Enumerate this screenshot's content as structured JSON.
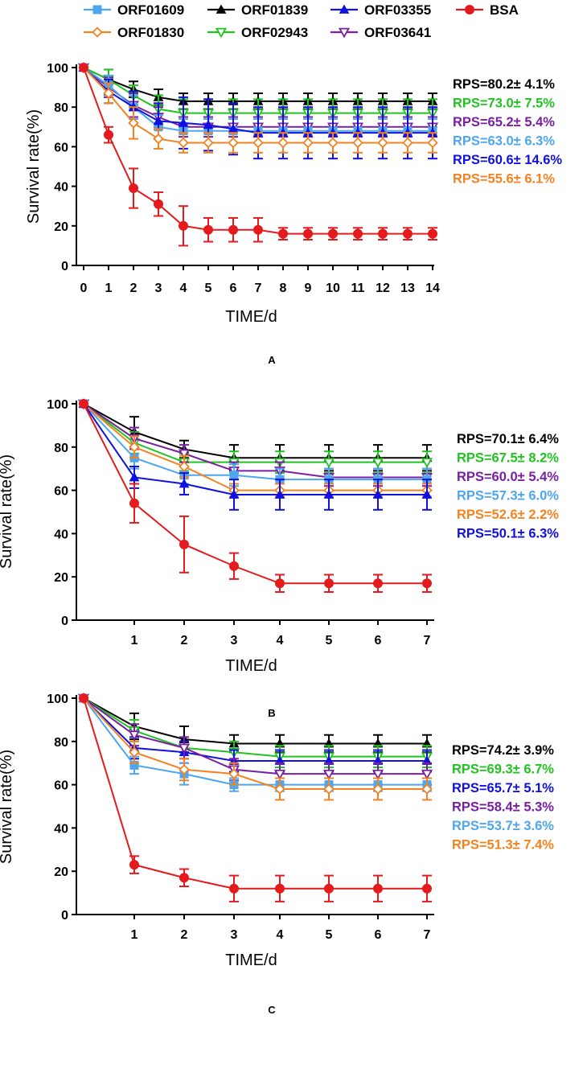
{
  "legend": [
    {
      "name": "ORF01609",
      "color": "#4da6ee",
      "marker": "square"
    },
    {
      "name": "ORF01839",
      "color": "#000000",
      "marker": "triangle-up"
    },
    {
      "name": "ORF03355",
      "color": "#1010e0",
      "marker": "triangle-up"
    },
    {
      "name": "BSA",
      "color": "#e41a1c",
      "marker": "circle"
    },
    {
      "name": "ORF01830",
      "color": "#f58220",
      "marker": "diamond-open"
    },
    {
      "name": "ORF02943",
      "color": "#21c321",
      "marker": "triangle-down-open"
    },
    {
      "name": "ORF03641",
      "color": "#7a1fa2",
      "marker": "triangle-down-open"
    }
  ],
  "chart_data": [
    {
      "type": "line",
      "panel_label": "A",
      "xlabel": "TIME/d",
      "ylabel": "Survival rate(%)",
      "xlim": [
        0,
        14
      ],
      "ylim": [
        0,
        100
      ],
      "x_ticks": [
        0,
        1,
        2,
        3,
        4,
        5,
        6,
        7,
        8,
        9,
        10,
        11,
        12,
        13,
        14
      ],
      "y_ticks": [
        0,
        20,
        40,
        60,
        80,
        100
      ],
      "x": [
        0,
        1,
        2,
        3,
        4,
        5,
        6,
        7,
        8,
        9,
        10,
        11,
        12,
        13,
        14
      ],
      "series": [
        {
          "name": "ORF01839",
          "values": [
            100,
            94,
            89,
            85,
            83,
            83,
            83,
            83,
            83,
            83,
            83,
            83,
            83,
            83,
            83
          ],
          "errors": [
            0,
            5,
            4,
            4,
            4,
            4,
            4,
            4,
            4,
            4,
            4,
            4,
            4,
            4,
            4
          ]
        },
        {
          "name": "ORF02943",
          "values": [
            100,
            94,
            86,
            79,
            77,
            77,
            77,
            77,
            77,
            77,
            77,
            77,
            77,
            77,
            77
          ],
          "errors": [
            0,
            5,
            5,
            7,
            7,
            7,
            7,
            7,
            7,
            7,
            7,
            7,
            7,
            7,
            7
          ]
        },
        {
          "name": "ORF03641",
          "values": [
            100,
            90,
            81,
            75,
            70,
            70,
            70,
            70,
            70,
            70,
            70,
            70,
            70,
            70,
            70
          ],
          "errors": [
            0,
            5,
            6,
            5,
            5,
            5,
            5,
            5,
            5,
            5,
            5,
            5,
            5,
            5,
            5
          ]
        },
        {
          "name": "ORF01609",
          "values": [
            100,
            91,
            80,
            70,
            68,
            68,
            68,
            68,
            68,
            68,
            68,
            68,
            68,
            68,
            68
          ],
          "errors": [
            0,
            5,
            6,
            6,
            6,
            6,
            6,
            6,
            6,
            6,
            6,
            6,
            6,
            6,
            6
          ]
        },
        {
          "name": "ORF03355",
          "values": [
            100,
            88,
            80,
            73,
            72,
            71,
            69,
            67,
            67,
            67,
            67,
            67,
            67,
            67,
            67
          ],
          "errors": [
            0,
            6,
            8,
            9,
            13,
            13,
            13,
            13,
            13,
            13,
            13,
            13,
            13,
            13,
            13
          ]
        },
        {
          "name": "ORF01830",
          "values": [
            100,
            87,
            72,
            64,
            62,
            62,
            62,
            62,
            62,
            62,
            62,
            62,
            62,
            62,
            62
          ],
          "errors": [
            0,
            5,
            8,
            5,
            5,
            5,
            5,
            5,
            5,
            5,
            5,
            5,
            5,
            5,
            5
          ]
        },
        {
          "name": "BSA",
          "values": [
            100,
            66,
            39,
            31,
            20,
            18,
            18,
            18,
            16,
            16,
            16,
            16,
            16,
            16,
            16
          ],
          "errors": [
            0,
            4,
            10,
            6,
            10,
            6,
            6,
            6,
            3,
            3,
            3,
            3,
            3,
            3,
            3
          ]
        }
      ],
      "annotations": [
        {
          "text": "RPS=80.2± 4.1%",
          "color": "#000000"
        },
        {
          "text": "RPS=73.0± 7.5%",
          "color": "#21c321"
        },
        {
          "text": "RPS=65.2± 5.4%",
          "color": "#7a1fa2"
        },
        {
          "text": "RPS=63.0± 6.3%",
          "color": "#4da6ee"
        },
        {
          "text": "RPS=60.6± 14.6%",
          "color": "#1010e0"
        },
        {
          "text": "RPS=55.6± 6.1%",
          "color": "#f58220"
        }
      ]
    },
    {
      "type": "line",
      "panel_label": "B",
      "xlabel": "TIME/d",
      "ylabel": "Survival rate(%)",
      "xlim": [
        0,
        7
      ],
      "ylim": [
        0,
        100
      ],
      "x_ticks": [
        1,
        2,
        3,
        4,
        5,
        6,
        7
      ],
      "y_ticks": [
        0,
        20,
        40,
        60,
        80,
        100
      ],
      "x": [
        0,
        1,
        2,
        3,
        4,
        5,
        6,
        7
      ],
      "series": [
        {
          "name": "ORF01839",
          "values": [
            100,
            87,
            79,
            75,
            75,
            75,
            75,
            75
          ],
          "errors": [
            0,
            7,
            4,
            6,
            6,
            6,
            6,
            6
          ]
        },
        {
          "name": "ORF02943",
          "values": [
            100,
            82,
            73,
            73,
            73,
            73,
            73,
            73
          ],
          "errors": [
            0,
            5,
            4,
            5,
            5,
            5,
            5,
            5
          ]
        },
        {
          "name": "ORF03641",
          "values": [
            100,
            84,
            77,
            69,
            69,
            66,
            66,
            66
          ],
          "errors": [
            0,
            5,
            4,
            4,
            4,
            4,
            4,
            4
          ]
        },
        {
          "name": "ORF01609",
          "values": [
            100,
            75,
            67,
            67,
            65,
            65,
            65,
            65
          ],
          "errors": [
            0,
            5,
            4,
            5,
            5,
            5,
            5,
            5
          ]
        },
        {
          "name": "ORF01830",
          "values": [
            100,
            80,
            71,
            60,
            60,
            60,
            60,
            60
          ],
          "errors": [
            0,
            5,
            5,
            3,
            3,
            3,
            3,
            3
          ]
        },
        {
          "name": "ORF03355",
          "values": [
            100,
            66,
            63,
            58,
            58,
            58,
            58,
            58
          ],
          "errors": [
            0,
            5,
            5,
            7,
            7,
            7,
            7,
            7
          ]
        },
        {
          "name": "BSA",
          "values": [
            100,
            54,
            35,
            25,
            17,
            17,
            17,
            17
          ],
          "errors": [
            0,
            9,
            13,
            6,
            4,
            4,
            4,
            4
          ]
        }
      ],
      "annotations": [
        {
          "text": "RPS=70.1± 6.4%",
          "color": "#000000"
        },
        {
          "text": "RPS=67.5± 8.2%",
          "color": "#21c321"
        },
        {
          "text": "RPS=60.0± 5.4%",
          "color": "#7a1fa2"
        },
        {
          "text": "RPS=57.3± 6.0%",
          "color": "#4da6ee"
        },
        {
          "text": "RPS=52.6± 2.2%",
          "color": "#f58220"
        },
        {
          "text": "RPS=50.1± 6.3%",
          "color": "#1010e0"
        }
      ]
    },
    {
      "type": "line",
      "panel_label": "C",
      "xlabel": "TIME/d",
      "ylabel": "Survival rate(%)",
      "xlim": [
        0,
        7
      ],
      "ylim": [
        0,
        100
      ],
      "x_ticks": [
        1,
        2,
        3,
        4,
        5,
        6,
        7
      ],
      "y_ticks": [
        0,
        20,
        40,
        60,
        80,
        100
      ],
      "x": [
        0,
        1,
        2,
        3,
        4,
        5,
        6,
        7
      ],
      "series": [
        {
          "name": "ORF01839",
          "values": [
            100,
            87,
            81,
            79,
            79,
            79,
            79,
            79
          ],
          "errors": [
            0,
            6,
            6,
            4,
            4,
            4,
            4,
            4
          ]
        },
        {
          "name": "ORF02943",
          "values": [
            100,
            85,
            77,
            75,
            73,
            73,
            73,
            73
          ],
          "errors": [
            0,
            5,
            5,
            5,
            5,
            5,
            5,
            5
          ]
        },
        {
          "name": "ORF03355",
          "values": [
            100,
            77,
            75,
            71,
            71,
            71,
            71,
            71
          ],
          "errors": [
            0,
            5,
            5,
            5,
            5,
            5,
            5,
            5
          ]
        },
        {
          "name": "ORF03641",
          "values": [
            100,
            83,
            77,
            67,
            65,
            65,
            65,
            65
          ],
          "errors": [
            0,
            5,
            5,
            5,
            5,
            5,
            5,
            5
          ]
        },
        {
          "name": "ORF01609",
          "values": [
            100,
            69,
            65,
            60,
            60,
            60,
            60,
            60
          ],
          "errors": [
            0,
            4,
            5,
            3,
            3,
            3,
            3,
            3
          ]
        },
        {
          "name": "ORF01830",
          "values": [
            100,
            75,
            67,
            65,
            58,
            58,
            58,
            58
          ],
          "errors": [
            0,
            5,
            5,
            5,
            5,
            5,
            5,
            5
          ]
        },
        {
          "name": "BSA",
          "values": [
            100,
            23,
            17,
            12,
            12,
            12,
            12,
            12
          ],
          "errors": [
            0,
            4,
            4,
            6,
            6,
            6,
            6,
            6
          ]
        }
      ],
      "annotations": [
        {
          "text": "RPS=74.2± 3.9%",
          "color": "#000000"
        },
        {
          "text": "RPS=69.3± 6.7%",
          "color": "#21c321"
        },
        {
          "text": "RPS=65.7± 5.1%",
          "color": "#1010e0"
        },
        {
          "text": "RPS=58.4± 5.3%",
          "color": "#7a1fa2"
        },
        {
          "text": "RPS=53.7± 3.6%",
          "color": "#4da6ee"
        },
        {
          "text": "RPS=51.3± 7.4%",
          "color": "#f58220"
        }
      ]
    }
  ]
}
